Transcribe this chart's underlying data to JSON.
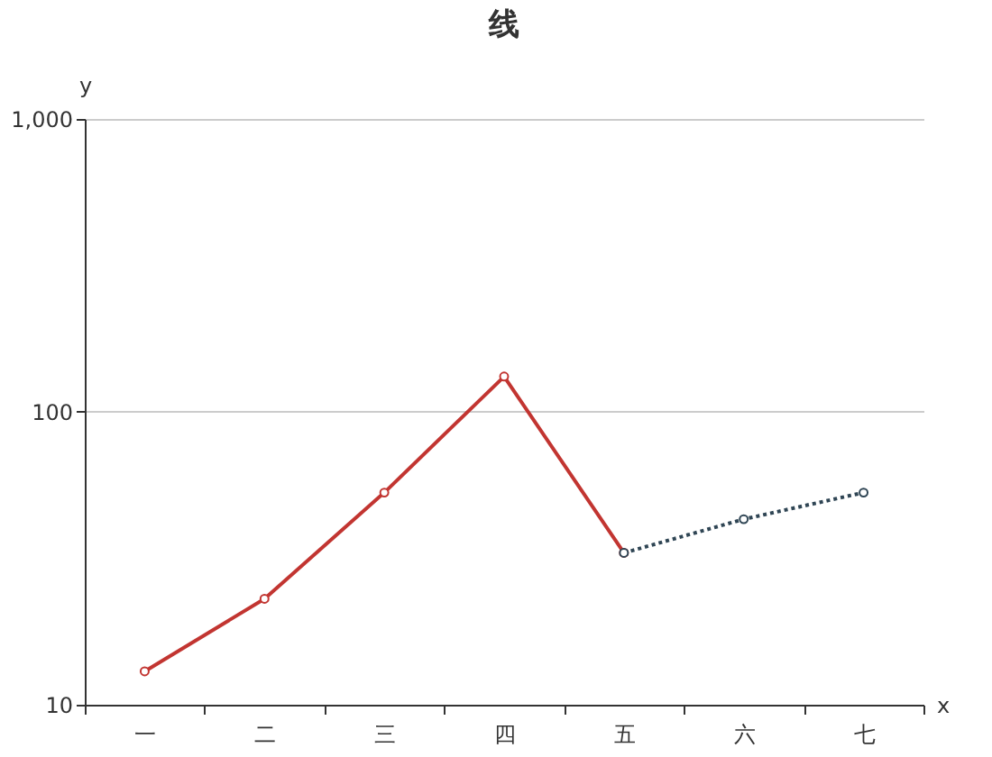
{
  "chart_data": {
    "type": "line",
    "title": "线",
    "xlabel": "x",
    "ylabel": "y",
    "categories": [
      "一",
      "二",
      "三",
      "四",
      "五",
      "六",
      "七"
    ],
    "series": [
      {
        "color": "#c23531",
        "line_style": "solid",
        "values": [
          13,
          23,
          53,
          132,
          33,
          null,
          null
        ]
      },
      {
        "color": "#2f4554",
        "line_style": "dotted",
        "values": [
          null,
          null,
          null,
          null,
          33,
          43,
          53
        ]
      }
    ],
    "log": "y",
    "ylim": [
      10,
      1000
    ],
    "yticks": [
      10,
      100,
      {
        "value": 1000,
        "label": "1,000"
      }
    ],
    "grid": "y",
    "marker": "circle"
  }
}
